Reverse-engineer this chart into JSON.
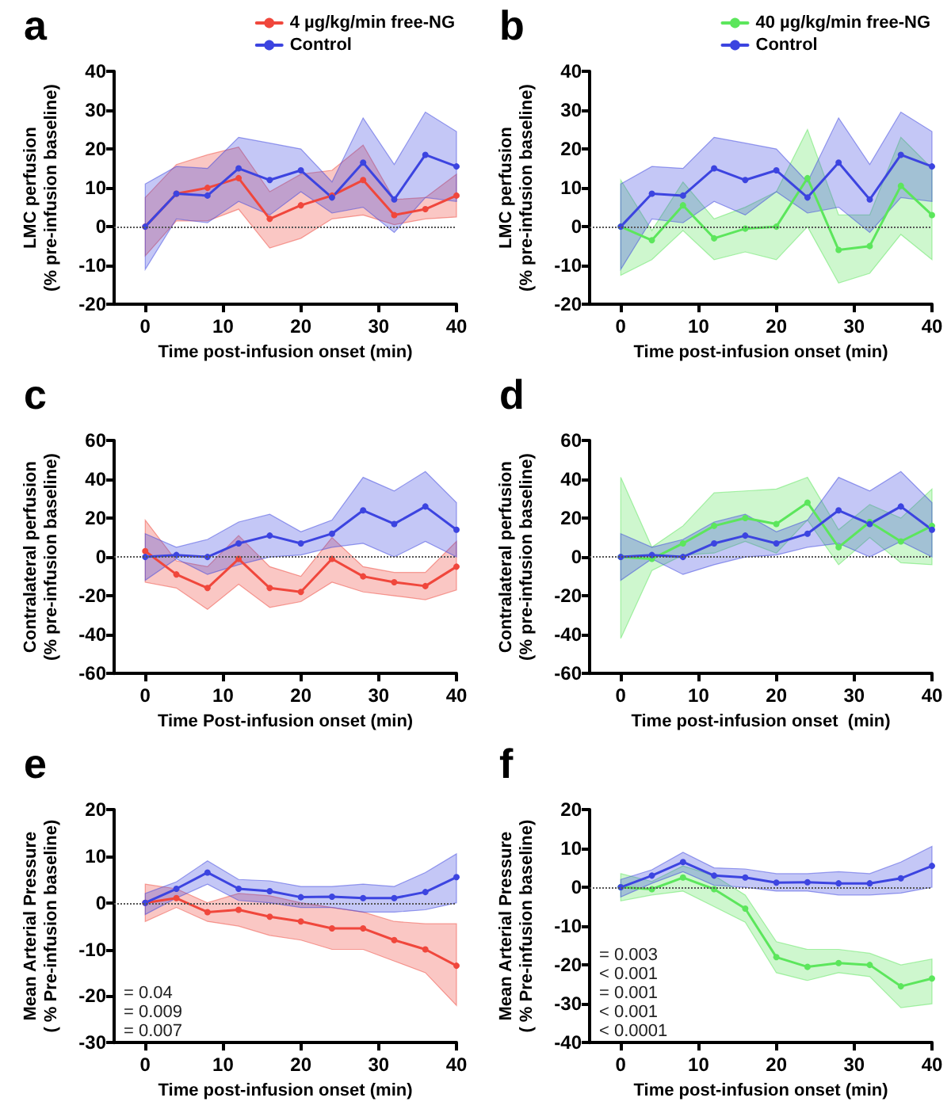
{
  "chart_data": [
    {
      "type": "line",
      "title": "a",
      "xlabel": "Time post-infusion onset (min)",
      "ylabel": "LMC perfusion\n(% pre-infusion baseline)",
      "x": [
        0,
        4,
        8,
        12,
        16,
        20,
        24,
        28,
        32,
        36,
        40
      ],
      "xlim": [
        -4,
        40
      ],
      "xticks": [
        0,
        10,
        20,
        30,
        40
      ],
      "ylim": [
        -20,
        40
      ],
      "yticks": [
        -20,
        -10,
        0,
        10,
        20,
        30,
        40
      ],
      "grid": false,
      "legend": "top right",
      "marker": "circle",
      "line_style": "solid",
      "series": [
        {
          "name": "4 µg/kg/min free-NG",
          "color": "#f0473c",
          "values": [
            0,
            8.5,
            10,
            12.5,
            2,
            5.5,
            8,
            12,
            3,
            4.5,
            8
          ],
          "upper": [
            7.5,
            16,
            18.5,
            20.5,
            9,
            13.5,
            14.5,
            21,
            7,
            7.5,
            13.5
          ],
          "lower": [
            -7.5,
            1.5,
            1.5,
            4.5,
            -5.5,
            -3,
            2,
            3,
            0.5,
            2,
            2.5
          ]
        },
        {
          "name": "Control",
          "color": "#3c44e0",
          "values": [
            0,
            8.5,
            8,
            15,
            12,
            14.5,
            7.5,
            16.5,
            7,
            18.5,
            15.5
          ],
          "upper": [
            11,
            15.5,
            15,
            23,
            21.5,
            20,
            11.5,
            28,
            16,
            29.5,
            24.5
          ],
          "lower": [
            -11,
            2,
            1,
            6.5,
            3,
            9,
            3.5,
            5,
            -1.5,
            7.5,
            6.5
          ]
        }
      ],
      "ref_lines": [
        {
          "axis": "y",
          "value": 0,
          "color": "#555555",
          "line_style": "dotted"
        }
      ]
    },
    {
      "type": "line",
      "title": "b",
      "xlabel": "Time post-infusion onset (min)",
      "ylabel": "LMC perfusion\n(% pre-infusion baseline)",
      "x": [
        0,
        4,
        8,
        12,
        16,
        20,
        24,
        28,
        32,
        36,
        40
      ],
      "xlim": [
        -4,
        40
      ],
      "xticks": [
        0,
        10,
        20,
        30,
        40
      ],
      "ylim": [
        -20,
        40
      ],
      "yticks": [
        -20,
        -10,
        0,
        10,
        20,
        30,
        40
      ],
      "grid": false,
      "legend": "top right",
      "marker": "circle",
      "line_style": "solid",
      "series": [
        {
          "name": "40 µg/kg/min free-NG",
          "color": "#5ce65c",
          "values": [
            0,
            -3.5,
            5.5,
            -3,
            -0.5,
            0,
            12.5,
            -6,
            -5,
            10.5,
            3
          ],
          "upper": [
            12,
            -1,
            11.5,
            2,
            5,
            9,
            25,
            3,
            3,
            23,
            15
          ],
          "lower": [
            -12.5,
            -8.5,
            -1,
            -8.5,
            -6.5,
            -8.5,
            0,
            -14.5,
            -12,
            -2,
            -8.5
          ]
        },
        {
          "name": "Control",
          "color": "#3c44e0",
          "values": [
            0,
            8.5,
            8,
            15,
            12,
            14.5,
            7.5,
            16.5,
            7,
            18.5,
            15.5
          ],
          "upper": [
            11,
            15.5,
            15,
            23,
            21.5,
            20,
            11.5,
            28,
            16,
            29.5,
            24.5
          ],
          "lower": [
            -11,
            2,
            1,
            6.5,
            3,
            9,
            3.5,
            5,
            -1.5,
            7.5,
            6.5
          ]
        }
      ],
      "ref_lines": [
        {
          "axis": "y",
          "value": 0,
          "color": "#555555",
          "line_style": "dotted"
        }
      ]
    },
    {
      "type": "line",
      "title": "c",
      "xlabel": "Time Post-infusion onset (min)",
      "ylabel": "Contralateral perfusion\n(% pre-infusion baseline)",
      "x": [
        0,
        4,
        8,
        12,
        16,
        20,
        24,
        28,
        32,
        36,
        40
      ],
      "xlim": [
        -4,
        40
      ],
      "xticks": [
        0,
        10,
        20,
        30,
        40
      ],
      "ylim": [
        -60,
        60
      ],
      "yticks": [
        -60,
        -40,
        -20,
        0,
        20,
        40,
        60
      ],
      "grid": false,
      "marker": "circle",
      "line_style": "solid",
      "series": [
        {
          "color": "#f0473c",
          "values": [
            3,
            -9,
            -16,
            -1,
            -16,
            -18,
            -1,
            -10,
            -13,
            -15,
            -5
          ],
          "upper": [
            19,
            -2,
            -5,
            11,
            -5,
            -10,
            10,
            -5,
            -8,
            -8,
            8
          ],
          "lower": [
            -13,
            -16,
            -27,
            -14,
            -26,
            -23,
            -13,
            -18,
            -20,
            -22,
            -17
          ]
        },
        {
          "color": "#3c44e0",
          "values": [
            0,
            1,
            0,
            7,
            11,
            7,
            12,
            24,
            17,
            26,
            14
          ],
          "upper": [
            12,
            5,
            9,
            18,
            22,
            13,
            19,
            41,
            34,
            44,
            28
          ],
          "lower": [
            -12,
            -1,
            -9,
            -4,
            0,
            1,
            5,
            7,
            0,
            8,
            0
          ]
        }
      ],
      "ref_lines": [
        {
          "axis": "y",
          "value": 0,
          "color": "#555555",
          "line_style": "dotted"
        }
      ]
    },
    {
      "type": "line",
      "title": "d",
      "xlabel": "Time post-infusion onset  (min)",
      "ylabel": "Contralateral perfusion\n(% pre-infusion baseline)",
      "x": [
        0,
        4,
        8,
        12,
        16,
        20,
        24,
        28,
        32,
        36,
        40
      ],
      "xlim": [
        -4,
        40
      ],
      "xticks": [
        0,
        10,
        20,
        30,
        40
      ],
      "ylim": [
        -60,
        60
      ],
      "yticks": [
        -60,
        -40,
        -20,
        0,
        20,
        40,
        60
      ],
      "grid": false,
      "marker": "circle",
      "line_style": "solid",
      "series": [
        {
          "color": "#5ce65c",
          "values": [
            0,
            -1,
            7,
            16,
            20,
            17,
            28,
            5,
            18,
            8,
            16
          ],
          "upper": [
            41,
            5,
            16,
            33,
            34,
            35,
            41,
            14,
            27,
            20,
            35
          ],
          "lower": [
            -42,
            -7,
            1,
            2,
            8,
            2,
            19,
            -4,
            10,
            -3,
            -4
          ]
        },
        {
          "color": "#3c44e0",
          "values": [
            0,
            1,
            0,
            7,
            11,
            7,
            12,
            24,
            17,
            26,
            14
          ],
          "upper": [
            12,
            5,
            9,
            18,
            22,
            13,
            19,
            41,
            34,
            44,
            28
          ],
          "lower": [
            -12,
            -1,
            -9,
            -4,
            0,
            1,
            5,
            7,
            0,
            8,
            0
          ]
        }
      ],
      "ref_lines": [
        {
          "axis": "y",
          "value": 0,
          "color": "#555555",
          "line_style": "dotted"
        }
      ]
    },
    {
      "type": "line",
      "title": "e",
      "xlabel": "Time post-infusion onset (min)",
      "ylabel": "Mean Arterial Pressure\n( % Pre-infusion baseline)",
      "x": [
        0,
        4,
        8,
        12,
        16,
        20,
        24,
        28,
        32,
        36,
        40
      ],
      "xlim": [
        -4,
        40
      ],
      "xticks": [
        0,
        10,
        20,
        30,
        40
      ],
      "ylim": [
        -30,
        20
      ],
      "yticks": [
        -30,
        -20,
        -10,
        0,
        10,
        20
      ],
      "grid": false,
      "marker": "circle",
      "line_style": "solid",
      "series": [
        {
          "color": "#f0473c",
          "values": [
            0,
            1,
            -2,
            -1.5,
            -3,
            -4,
            -5.5,
            -5.5,
            -8,
            -10,
            -13.5
          ],
          "upper": [
            4,
            3,
            0,
            2,
            1.5,
            0,
            -1,
            -2,
            -4,
            -4.5,
            -4.5
          ],
          "lower": [
            -4,
            -1,
            -4,
            -5,
            -7,
            -8,
            -10,
            -10,
            -12.5,
            -15,
            -22
          ]
        },
        {
          "color": "#3c44e0",
          "values": [
            0,
            3,
            6.5,
            3,
            2.5,
            1.2,
            1.3,
            1,
            1,
            2.3,
            5.5
          ],
          "upper": [
            2,
            4.5,
            9,
            5,
            4.7,
            3.5,
            3.5,
            4,
            3.5,
            6.5,
            10.5
          ],
          "lower": [
            -2.5,
            1,
            4,
            0.5,
            0,
            -1,
            -1,
            -2,
            -2,
            -1.5,
            0
          ]
        }
      ],
      "ref_lines": [
        {
          "axis": "y",
          "value": 0,
          "color": "#555555",
          "line_style": "dotted"
        }
      ],
      "annotations": [
        "= 0.04",
        "= 0.009",
        "= 0.007"
      ]
    },
    {
      "type": "line",
      "title": "f",
      "xlabel": "Time post-infusion onset (min)",
      "ylabel": "Mean Arterial Pressure\n( % Pre-infusion baseline)",
      "x": [
        0,
        4,
        8,
        12,
        16,
        20,
        24,
        28,
        32,
        36,
        40
      ],
      "xlim": [
        -4,
        40
      ],
      "xticks": [
        0,
        10,
        20,
        30,
        40
      ],
      "ylim": [
        -40,
        20
      ],
      "yticks": [
        -40,
        -30,
        -20,
        -10,
        0,
        10,
        20
      ],
      "grid": false,
      "marker": "circle",
      "line_style": "solid",
      "series": [
        {
          "color": "#5ce65c",
          "values": [
            0,
            -0.5,
            2.5,
            -0.5,
            -5.5,
            -18,
            -20.5,
            -19.5,
            -20,
            -25.5,
            -23.5
          ],
          "upper": [
            3.5,
            1.5,
            5.5,
            3,
            -2,
            -14,
            -16,
            -16,
            -17,
            -20,
            -18.5
          ],
          "lower": [
            -3.5,
            -2,
            -1,
            -5,
            -9,
            -22,
            -24,
            -22,
            -23,
            -31,
            -30
          ]
        },
        {
          "color": "#3c44e0",
          "values": [
            0,
            3,
            6.5,
            3,
            2.5,
            1.2,
            1.3,
            1,
            1,
            2.3,
            5.5
          ],
          "upper": [
            2,
            4.5,
            9,
            5,
            4.7,
            3.5,
            3.5,
            4,
            3.5,
            6.5,
            10.5
          ],
          "lower": [
            -2.5,
            1,
            4,
            0.5,
            0,
            -1,
            -1,
            -2,
            -2,
            -1.5,
            0
          ]
        }
      ],
      "ref_lines": [
        {
          "axis": "y",
          "value": 0,
          "color": "#555555",
          "line_style": "dotted"
        }
      ],
      "annotations": [
        "= 0.003",
        "< 0.001",
        "= 0.001",
        "< 0.001",
        "< 0.0001"
      ]
    }
  ]
}
